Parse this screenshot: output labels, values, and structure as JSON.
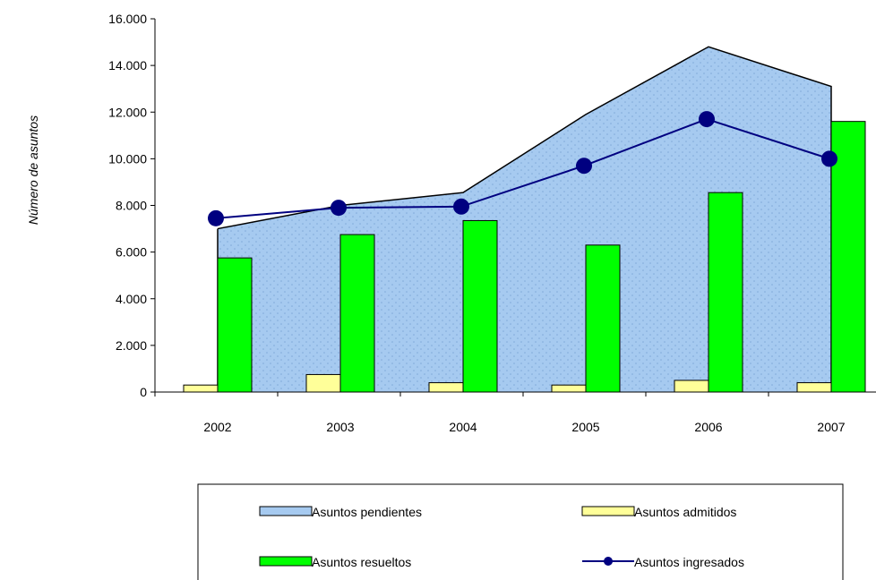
{
  "chart_data": {
    "type": "bar",
    "categories": [
      "2002",
      "2003",
      "2004",
      "2005",
      "2006",
      "2007"
    ],
    "ylabel": "Número de asuntos",
    "ylim": [
      0,
      16000
    ],
    "yticks": [
      0,
      2000,
      4000,
      6000,
      8000,
      10000,
      12000,
      14000,
      16000
    ],
    "ytick_labels": [
      "0",
      "2.000",
      "4.000",
      "6.000",
      "8.000",
      "10.000",
      "12.000",
      "14.000",
      "16.000"
    ],
    "grid": false,
    "legend_position": "bottom",
    "series": [
      {
        "name": "Asuntos pendientes",
        "kind": "area",
        "values": [
          7000,
          8000,
          8550,
          11900,
          14800,
          13100
        ],
        "color": "#a6caf0"
      },
      {
        "name": "Asuntos admitidos",
        "kind": "bar",
        "values": [
          300,
          750,
          400,
          300,
          500,
          400
        ],
        "color": "#ffff99"
      },
      {
        "name": "Asuntos resueltos",
        "kind": "bar",
        "values": [
          5750,
          6750,
          7350,
          6300,
          8550,
          11600
        ],
        "color": "#00ff00"
      },
      {
        "name": "Asuntos ingresados",
        "kind": "line",
        "values": [
          7450,
          7900,
          7950,
          9700,
          11700,
          10000
        ],
        "color": "#000080"
      }
    ]
  }
}
